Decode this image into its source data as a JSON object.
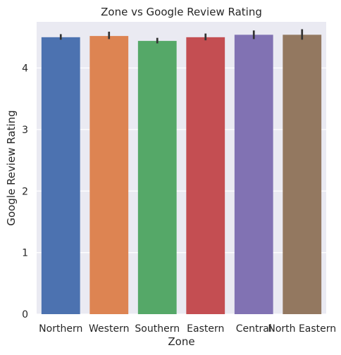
{
  "chart_data": {
    "type": "bar",
    "title": "Zone vs Google Review Rating",
    "xlabel": "Zone",
    "ylabel": "Google Review Rating",
    "categories": [
      "Northern",
      "Western",
      "Southern",
      "Eastern",
      "Central",
      "North Eastern"
    ],
    "values": [
      4.5,
      4.52,
      4.44,
      4.5,
      4.54,
      4.54
    ],
    "error_low": [
      4.46,
      4.47,
      4.4,
      4.45,
      4.47,
      4.46
    ],
    "error_high": [
      4.55,
      4.59,
      4.49,
      4.56,
      4.61,
      4.63
    ],
    "ylim": [
      0,
      4.75
    ],
    "yticks": [
      0,
      1,
      2,
      3,
      4
    ],
    "grid": true,
    "legend": "none",
    "colors": [
      "#4c72b0",
      "#dd8452",
      "#55a868",
      "#c44e52",
      "#8172b3",
      "#937860"
    ],
    "error_bar_color": "#333333",
    "background_color": "#eaeaf2",
    "grid_color": "#ffffff"
  }
}
